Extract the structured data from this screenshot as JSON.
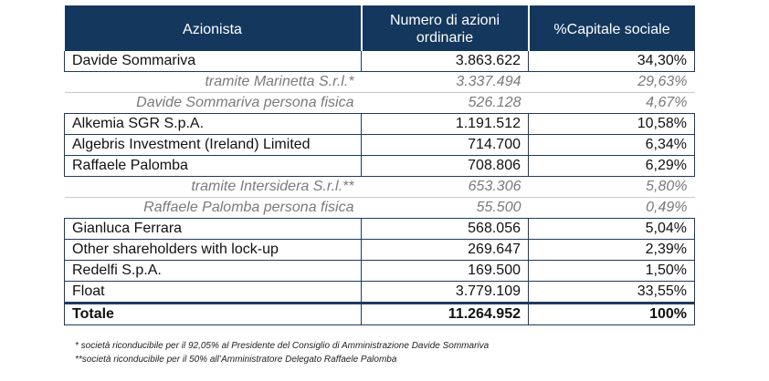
{
  "table": {
    "headers": {
      "shareholder": "Azionista",
      "shares": "Numero di azioni ordinarie",
      "capital": "%Capitale sociale"
    },
    "rows": [
      {
        "name": "Davide Sommariva",
        "shares": "3.863.622",
        "pct": "34,30%",
        "kind": "main"
      },
      {
        "name": "tramite Marinetta S.r.l.*",
        "shares": "3.337.494",
        "pct": "29,63%",
        "kind": "sub"
      },
      {
        "name": "Davide Sommariva persona fisica",
        "shares": "526.128",
        "pct": "4,67%",
        "kind": "sub-last"
      },
      {
        "name": "Alkemia SGR S.p.A.",
        "shares": "1.191.512",
        "pct": "10,58%",
        "kind": "main"
      },
      {
        "name": "Algebris Investment (Ireland) Limited",
        "shares": "714.700",
        "pct": "6,34%",
        "kind": "main"
      },
      {
        "name": "Raffaele Palomba",
        "shares": "708.806",
        "pct": "6,29%",
        "kind": "main"
      },
      {
        "name": "tramite Intersidera S.r.l.**",
        "shares": "653.306",
        "pct": "5,80%",
        "kind": "sub"
      },
      {
        "name": "Raffaele Palomba persona fisica",
        "shares": "55.500",
        "pct": "0,49%",
        "kind": "sub-last"
      },
      {
        "name": "Gianluca Ferrara",
        "shares": "568.056",
        "pct": "5,04%",
        "kind": "main"
      },
      {
        "name": "Other shareholders with lock-up",
        "shares": "269.647",
        "pct": "2,39%",
        "kind": "main"
      },
      {
        "name": "Redelfi S.p.A.",
        "shares": "169.500",
        "pct": "1,50%",
        "kind": "main"
      },
      {
        "name": "Float",
        "shares": "3.779.109",
        "pct": "33,55%",
        "kind": "main"
      }
    ],
    "total": {
      "name": "Totale",
      "shares": "11.264.952",
      "pct": "100%"
    }
  },
  "footnotes": [
    "* società riconducibile per il 92,05% al Presidente del Consiglio di Amministrazione Davide Sommariva",
    "**società riconducibile per il 50% all’Amministratore Delegato Raffaele Palomba"
  ],
  "colors": {
    "header_bg": "#14375e",
    "header_text": "#ffffff",
    "sub_text": "#7a7a7a",
    "border": "#1f3a5f"
  }
}
